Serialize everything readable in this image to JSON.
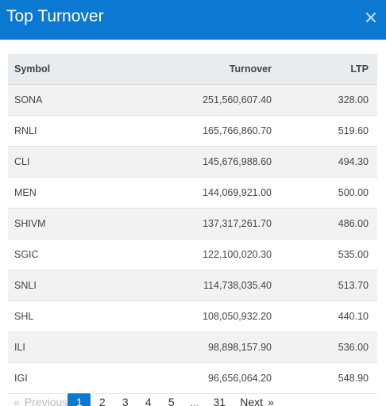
{
  "header": {
    "title": "Top Turnover",
    "close_glyph": "✕"
  },
  "table": {
    "columns": [
      "Symbol",
      "Turnover",
      "LTP"
    ],
    "rows": [
      {
        "symbol": "SONA",
        "turnover": "251,560,607.40",
        "ltp": "328.00"
      },
      {
        "symbol": "RNLI",
        "turnover": "165,766,860.70",
        "ltp": "519.60"
      },
      {
        "symbol": "CLI",
        "turnover": "145,676,988.60",
        "ltp": "494.30"
      },
      {
        "symbol": "MEN",
        "turnover": "144,069,921.00",
        "ltp": "500.00"
      },
      {
        "symbol": "SHIVM",
        "turnover": "137,317,261.70",
        "ltp": "486.00"
      },
      {
        "symbol": "SGIC",
        "turnover": "122,100,020.30",
        "ltp": "535.00"
      },
      {
        "symbol": "SNLI",
        "turnover": "114,738,035.40",
        "ltp": "513.70"
      },
      {
        "symbol": "SHL",
        "turnover": "108,050,932.20",
        "ltp": "440.10"
      },
      {
        "symbol": "ILI",
        "turnover": "98,898,157.90",
        "ltp": "536.00"
      },
      {
        "symbol": "IGI",
        "turnover": "96,656,064.20",
        "ltp": "548.90"
      }
    ]
  },
  "pagination": {
    "prev_arrow": "«",
    "prev_label": "Previous",
    "pages": [
      "1",
      "2",
      "3",
      "4",
      "5"
    ],
    "active_page": "1",
    "ellipsis": "...",
    "last_page": "31",
    "next_label": "Next",
    "next_arrow": "»"
  },
  "colors": {
    "accent": "#0b78d1",
    "header_text": "#ffffff",
    "row_stripe": "#f2f2f2",
    "thead_bg": "#e9ecef"
  }
}
